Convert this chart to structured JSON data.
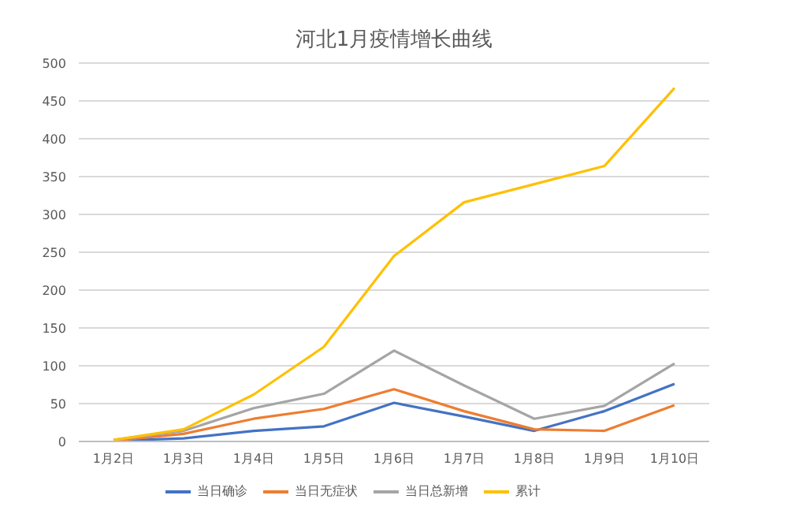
{
  "chart_data": {
    "type": "line",
    "title": "河北1月疫情增长曲线",
    "categories": [
      "1月2日",
      "1月3日",
      "1月4日",
      "1月5日",
      "1月6日",
      "1月7日",
      "1月8日",
      "1月9日",
      "1月10日"
    ],
    "series": [
      {
        "name": "当日确诊",
        "color": "#4472c4",
        "values": [
          1,
          4,
          14,
          20,
          51,
          33,
          14,
          40,
          76
        ]
      },
      {
        "name": "当日无症状",
        "color": "#ed7d31",
        "values": [
          1,
          10,
          30,
          43,
          69,
          40,
          16,
          14,
          48
        ]
      },
      {
        "name": "当日总新增",
        "color": "#a5a5a5",
        "values": [
          2,
          14,
          44,
          63,
          120,
          74,
          30,
          47,
          103
        ]
      },
      {
        "name": "累计",
        "color": "#ffc000",
        "values": [
          2,
          16,
          62,
          125,
          245,
          316,
          340,
          364,
          467
        ]
      }
    ],
    "ylim": [
      0,
      500
    ],
    "yticks": [
      0,
      50,
      100,
      150,
      200,
      250,
      300,
      350,
      400,
      450,
      500
    ],
    "grid": "y",
    "legend": "bottom",
    "marker": "none",
    "line_style": "solid"
  }
}
